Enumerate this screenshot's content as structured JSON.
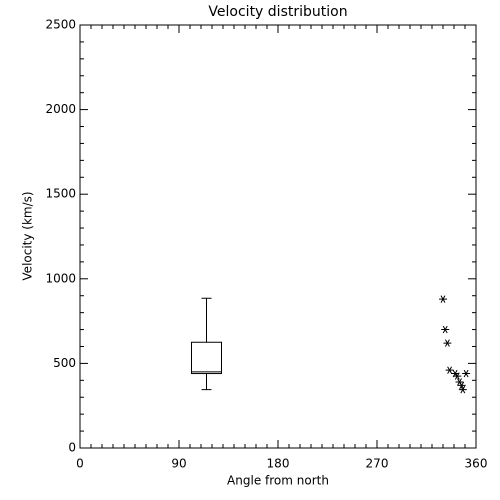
{
  "chart_data": {
    "type": "box",
    "title": "Velocity distribution",
    "x_label": "Angle from north",
    "y_label": "Velocity (km/s)",
    "xlim": [
      0,
      360
    ],
    "xticks": [
      0,
      90,
      180,
      270,
      360
    ],
    "x_minor": 9,
    "ylim": [
      0,
      2500
    ],
    "yticks": [
      0,
      500,
      1000,
      1500,
      2000,
      2500
    ],
    "y_minor": 5,
    "box": {
      "x": 115,
      "whisker_low": 345,
      "q1": 440,
      "median": 450,
      "q3": 625,
      "whisker_high": 885
    },
    "scatter": {
      "type": "scatter",
      "marker": "asterisk",
      "x": [
        330,
        332,
        334,
        336,
        341,
        343,
        345,
        347,
        348,
        351
      ],
      "y": [
        880,
        700,
        620,
        460,
        440,
        425,
        390,
        370,
        345,
        440
      ]
    }
  }
}
